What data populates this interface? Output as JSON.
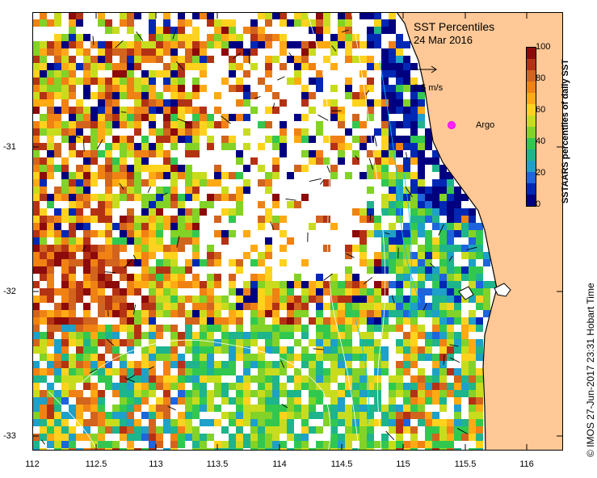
{
  "map": {
    "title": "SST Percentiles",
    "date": "24 Mar 2016",
    "vector_scale_label": "0.5 m/s",
    "argo_label": "Argo",
    "credit": "©  IMOS 27-Jun-2017 23:31 Hobart Time",
    "longitude_ticks": [
      "112",
      "112.5",
      "113",
      "113.5",
      "114",
      "114.5",
      "115",
      "115.5",
      "116"
    ],
    "latitude_ticks": [
      "-31",
      "-32",
      "-33"
    ],
    "colors": {
      "land": "#ffc896",
      "no_data": "#ffffff",
      "coast": "#000000",
      "argo": "#ff22ff"
    }
  },
  "colorbar": {
    "label": "SSTAARS percentiles of daily SST",
    "ticks": [
      "100",
      "80",
      "60",
      "40",
      "20",
      "0"
    ],
    "colors": [
      "#000080",
      "#0028b4",
      "#1e64dc",
      "#1ea0c8",
      "#1eb48c",
      "#32c850",
      "#82d228",
      "#c8dc1e",
      "#ffd21e",
      "#ffaa14",
      "#f08214",
      "#d2641e",
      "#b43214",
      "#8c0a0a"
    ]
  }
}
